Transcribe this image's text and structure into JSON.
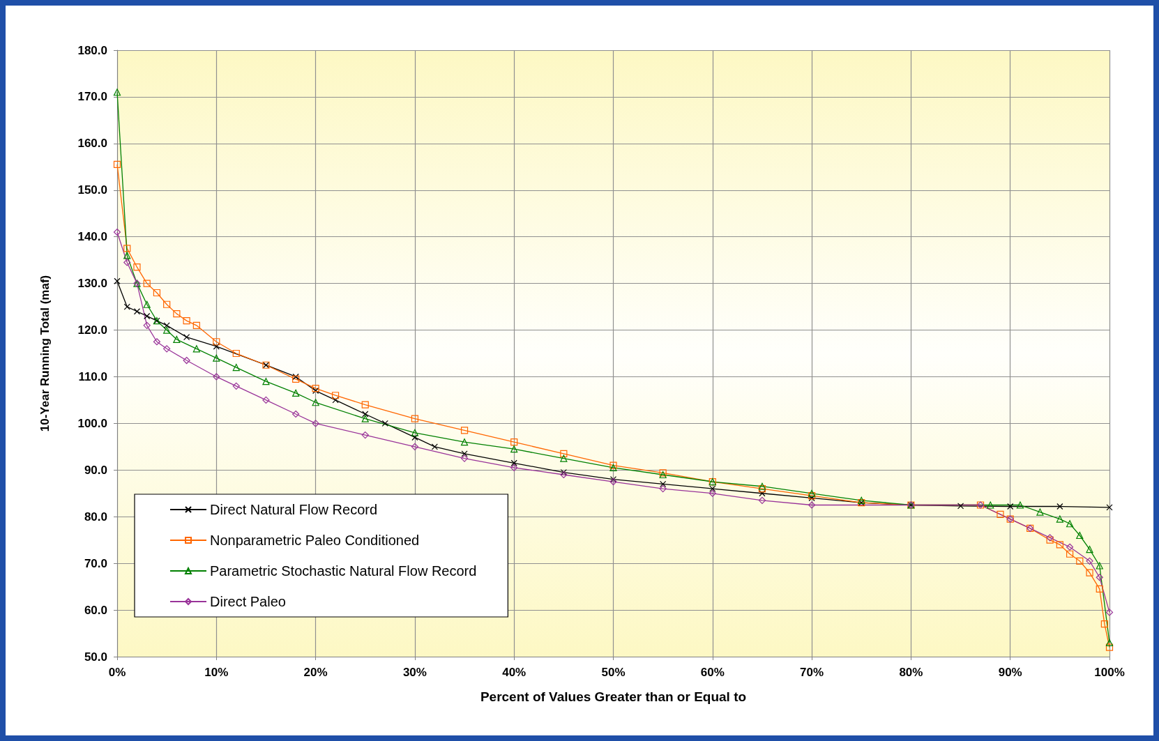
{
  "chart_data": {
    "type": "line",
    "xlabel": "Percent of Values Greater than or Equal to",
    "ylabel": "10-Year Running Total (maf)",
    "xlim": [
      0,
      100
    ],
    "xticks": [
      {
        "value": 0,
        "label": "0%"
      },
      {
        "value": 10,
        "label": "10%"
      },
      {
        "value": 20,
        "label": "20%"
      },
      {
        "value": 30,
        "label": "30%"
      },
      {
        "value": 40,
        "label": "40%"
      },
      {
        "value": 50,
        "label": "50%"
      },
      {
        "value": 60,
        "label": "60%"
      },
      {
        "value": 70,
        "label": "70%"
      },
      {
        "value": 80,
        "label": "80%"
      },
      {
        "value": 90,
        "label": "90%"
      },
      {
        "value": 100,
        "label": "100%"
      }
    ],
    "ylim": [
      50,
      180
    ],
    "yticks": [
      {
        "value": 50,
        "label": "50.0"
      },
      {
        "value": 60,
        "label": "60.0"
      },
      {
        "value": 70,
        "label": "70.0"
      },
      {
        "value": 80,
        "label": "80.0"
      },
      {
        "value": 90,
        "label": "90.0"
      },
      {
        "value": 100,
        "label": "100.0"
      },
      {
        "value": 110,
        "label": "110.0"
      },
      {
        "value": 120,
        "label": "120.0"
      },
      {
        "value": 130,
        "label": "130.0"
      },
      {
        "value": 140,
        "label": "140.0"
      },
      {
        "value": 150,
        "label": "150.0"
      },
      {
        "value": 160,
        "label": "160.0"
      },
      {
        "value": 170,
        "label": "170.0"
      },
      {
        "value": 180,
        "label": "180.0"
      }
    ],
    "grid": true,
    "legend": "bottom left",
    "line_style": "solid",
    "series": [
      {
        "name": "Direct Natural Flow Record",
        "color": "#000000",
        "marker": "cross",
        "x": [
          0,
          1,
          2,
          3,
          4,
          5,
          7,
          10,
          15,
          18,
          20,
          22,
          25,
          27,
          30,
          32,
          35,
          40,
          45,
          50,
          55,
          60,
          65,
          70,
          75,
          80,
          85,
          90,
          95,
          100
        ],
        "values": [
          130.5,
          125,
          124,
          123,
          122,
          121,
          118.5,
          116.5,
          112.5,
          110,
          107,
          105,
          102,
          100,
          97,
          95,
          93.5,
          91.5,
          89.5,
          88,
          87,
          86,
          85,
          84,
          83,
          82.5,
          82.3,
          82.2,
          82.2,
          82
        ]
      },
      {
        "name": "Nonparametric Paleo Conditioned",
        "color": "#ff6600",
        "marker": "square",
        "x": [
          0,
          1,
          2,
          3,
          4,
          5,
          6,
          7,
          8,
          10,
          12,
          15,
          18,
          20,
          22,
          25,
          30,
          35,
          40,
          45,
          50,
          55,
          60,
          65,
          70,
          75,
          80,
          87,
          89,
          90,
          92,
          94,
          95,
          96,
          97,
          98,
          99,
          99.5,
          100
        ],
        "values": [
          155.5,
          137.5,
          133.5,
          130,
          128,
          125.5,
          123.5,
          122,
          121,
          117.5,
          115,
          112.5,
          109.5,
          107.5,
          106,
          104,
          101,
          98.5,
          96,
          93.5,
          91,
          89.4,
          87.5,
          86,
          84.5,
          83,
          82.5,
          82.5,
          80.5,
          79.5,
          77.5,
          75,
          74,
          72,
          70.5,
          68,
          64.5,
          57,
          52
        ]
      },
      {
        "name": "Parametric Stochastic Natural Flow Record",
        "color": "#008000",
        "marker": "triangle",
        "x": [
          0,
          1,
          2,
          3,
          4,
          5,
          6,
          8,
          10,
          12,
          15,
          18,
          20,
          25,
          30,
          35,
          40,
          45,
          50,
          55,
          60,
          65,
          70,
          75,
          80,
          88,
          91,
          93,
          95,
          96,
          97,
          98,
          99,
          100
        ],
        "values": [
          171,
          136,
          130,
          125.5,
          122,
          120,
          118,
          116,
          114,
          112,
          109,
          106.5,
          104.5,
          101,
          98,
          96,
          94.5,
          92.5,
          90.5,
          89,
          87.5,
          86.5,
          85,
          83.5,
          82.5,
          82.5,
          82.5,
          81,
          79.5,
          78.5,
          76,
          73,
          69.5,
          53
        ]
      },
      {
        "name": "Direct Paleo",
        "color": "#993399",
        "marker": "diamond",
        "x": [
          0,
          1,
          2,
          3,
          4,
          5,
          7,
          10,
          12,
          15,
          18,
          20,
          25,
          30,
          35,
          40,
          45,
          50,
          55,
          60,
          65,
          70,
          80,
          87,
          90,
          92,
          94,
          96,
          98,
          99,
          100
        ],
        "values": [
          141,
          134.5,
          130,
          121,
          117.5,
          116,
          113.5,
          110,
          108,
          105,
          102,
          100,
          97.5,
          95,
          92.5,
          90.5,
          89,
          87.5,
          86,
          85,
          83.5,
          82.5,
          82.5,
          82.5,
          79.5,
          77.5,
          75.5,
          73.5,
          70.5,
          67,
          59.5
        ]
      }
    ]
  }
}
